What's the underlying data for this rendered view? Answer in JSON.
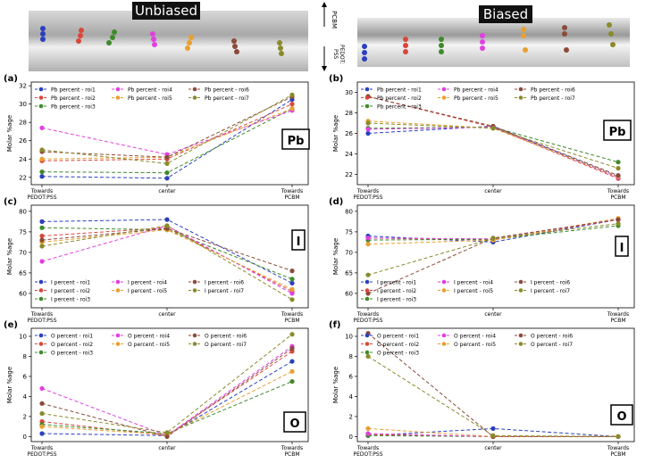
{
  "images": {
    "left_title": "Unbiased",
    "right_title": "Biased",
    "top_label": "PCBM",
    "bottom_label": "PEDOT:\nPSS"
  },
  "chart_data": [
    {
      "type": "line",
      "panel": "(a)",
      "element": "Pb",
      "ylabel": "Molar %age",
      "legend": "upper left",
      "categories": [
        "Towards\nPEDOT:PSS",
        "center",
        "Towards\nPCBM"
      ],
      "ylim": [
        21.2,
        32.4
      ],
      "yticks": [
        22,
        24,
        26,
        28,
        30,
        32
      ],
      "series": [
        {
          "name": "Pb percent - roi1",
          "color": "#2a3fbf",
          "values": [
            22.1,
            21.9,
            30.5
          ]
        },
        {
          "name": "Pb percent - roi2",
          "color": "#d9473a",
          "values": [
            23.8,
            24.0,
            30.0
          ]
        },
        {
          "name": "Pb percent - roi3",
          "color": "#3f8a2b",
          "values": [
            22.6,
            22.5,
            29.5
          ]
        },
        {
          "name": "Pb percent - roi4",
          "color": "#e040e0",
          "values": [
            27.4,
            24.5,
            29.3
          ]
        },
        {
          "name": "Pb percent - roi5",
          "color": "#e8a030",
          "values": [
            24.0,
            24.2,
            29.5
          ]
        },
        {
          "name": "Pb percent - roi6",
          "color": "#8b4a3a",
          "values": [
            24.8,
            24.2,
            30.8
          ]
        },
        {
          "name": "Pb percent - roi7",
          "color": "#8a8a2a",
          "values": [
            25.0,
            23.5,
            31.0
          ]
        }
      ]
    },
    {
      "type": "line",
      "panel": "(b)",
      "element": "Pb",
      "ylabel": "Molar %age",
      "legend": "upper left",
      "categories": [
        "Towards\nPEDOT:PSS",
        "center",
        "Towards\nPCBM"
      ],
      "ylim": [
        21,
        31
      ],
      "yticks": [
        22,
        24,
        26,
        28,
        30
      ],
      "series": [
        {
          "name": "Pb percent - roi1",
          "color": "#2a3fbf",
          "values": [
            26.0,
            26.7,
            21.8
          ]
        },
        {
          "name": "Pb percent - roi2",
          "color": "#d9473a",
          "values": [
            29.6,
            26.6,
            21.6
          ]
        },
        {
          "name": "Pb percent - roi3",
          "color": "#3f8a2b",
          "values": [
            26.5,
            26.6,
            23.2
          ]
        },
        {
          "name": "Pb percent - roi4",
          "color": "#e040e0",
          "values": [
            26.4,
            26.6,
            21.7
          ]
        },
        {
          "name": "Pb percent - roi5",
          "color": "#e8a030",
          "values": [
            27.2,
            26.5,
            21.8
          ]
        },
        {
          "name": "Pb percent - roi6",
          "color": "#8b4a3a",
          "values": [
            29.6,
            26.7,
            21.9
          ]
        },
        {
          "name": "Pb percent - roi7",
          "color": "#8a8a2a",
          "values": [
            27.0,
            26.5,
            22.6
          ]
        }
      ]
    },
    {
      "type": "line",
      "panel": "(c)",
      "element": "I",
      "ylabel": "Molar %age",
      "legend": "lower left",
      "categories": [
        "Towards\nPEDOT:PSS",
        "center",
        "Towards\nPCBM"
      ],
      "ylim": [
        56.5,
        81.5
      ],
      "yticks": [
        60,
        65,
        70,
        75,
        80
      ],
      "series": [
        {
          "name": "I percent - roi1",
          "color": "#2a3fbf",
          "values": [
            77.5,
            78.0,
            62.5
          ]
        },
        {
          "name": "I percent - roi2",
          "color": "#d9473a",
          "values": [
            74.0,
            76.0,
            60.5
          ]
        },
        {
          "name": "I percent - roi3",
          "color": "#3f8a2b",
          "values": [
            76.0,
            75.5,
            63.5
          ]
        },
        {
          "name": "I percent - roi4",
          "color": "#e040e0",
          "values": [
            67.8,
            76.5,
            60.0
          ]
        },
        {
          "name": "I percent - roi5",
          "color": "#e8a030",
          "values": [
            72.5,
            75.5,
            61.0
          ]
        },
        {
          "name": "I percent - roi6",
          "color": "#8b4a3a",
          "values": [
            73.0,
            75.8,
            65.5
          ]
        },
        {
          "name": "I percent - roi7",
          "color": "#8a8a2a",
          "values": [
            71.5,
            76.5,
            58.5
          ]
        }
      ]
    },
    {
      "type": "line",
      "panel": "(d)",
      "element": "I",
      "ylabel": "Molar %age",
      "legend": "lower left",
      "categories": [
        "Towards\nPEDOT:PSS",
        "center",
        "Towards\nPCBM"
      ],
      "ylim": [
        56.5,
        81.5
      ],
      "yticks": [
        60,
        65,
        70,
        75,
        80
      ],
      "series": [
        {
          "name": "I percent - roi1",
          "color": "#2a3fbf",
          "values": [
            74.0,
            72.5,
            78.0
          ]
        },
        {
          "name": "I percent - roi2",
          "color": "#d9473a",
          "values": [
            73.5,
            73.0,
            78.0
          ]
        },
        {
          "name": "I percent - roi3",
          "color": "#3f8a2b",
          "values": [
            73.0,
            73.2,
            76.5
          ]
        },
        {
          "name": "I percent - roi4",
          "color": "#e040e0",
          "values": [
            73.5,
            73.3,
            78.0
          ]
        },
        {
          "name": "I percent - roi5",
          "color": "#e8a030",
          "values": [
            72.0,
            73.0,
            78.3
          ]
        },
        {
          "name": "I percent - roi6",
          "color": "#8b4a3a",
          "values": [
            60.0,
            73.5,
            78.0
          ]
        },
        {
          "name": "I percent - roi7",
          "color": "#8a8a2a",
          "values": [
            64.5,
            73.4,
            77.0
          ]
        }
      ]
    },
    {
      "type": "line",
      "panel": "(e)",
      "element": "O",
      "ylabel": "Molar %age",
      "legend": "upper left",
      "categories": [
        "Towards\nPEDOT:PSS",
        "center",
        "Towards\nPCBM"
      ],
      "ylim": [
        -0.5,
        10.8
      ],
      "yticks": [
        0,
        2,
        4,
        6,
        8,
        10
      ],
      "series": [
        {
          "name": "O percent - roi1",
          "color": "#2a3fbf",
          "values": [
            0.3,
            0.1,
            7.5
          ]
        },
        {
          "name": "O percent - roi2",
          "color": "#d9473a",
          "values": [
            1.5,
            0.1,
            8.5
          ]
        },
        {
          "name": "O percent - roi3",
          "color": "#3f8a2b",
          "values": [
            1.2,
            0.3,
            5.5
          ]
        },
        {
          "name": "O percent - roi4",
          "color": "#e040e0",
          "values": [
            4.8,
            0.1,
            9.0
          ]
        },
        {
          "name": "O percent - roi5",
          "color": "#e8a030",
          "values": [
            1.0,
            0.2,
            6.5
          ]
        },
        {
          "name": "O percent - roi6",
          "color": "#8b4a3a",
          "values": [
            3.3,
            0.0,
            8.8
          ]
        },
        {
          "name": "O percent - roi7",
          "color": "#8a8a2a",
          "values": [
            2.3,
            0.4,
            10.2
          ]
        }
      ]
    },
    {
      "type": "line",
      "panel": "(f)",
      "element": "O",
      "ylabel": "Molar %age",
      "legend": "upper left",
      "categories": [
        "Towards\nPEDOT:PSS",
        "center",
        "Towards\nPCBM"
      ],
      "ylim": [
        -0.5,
        10.8
      ],
      "yticks": [
        0,
        2,
        4,
        6,
        8,
        10
      ],
      "series": [
        {
          "name": "O percent - roi1",
          "color": "#2a3fbf",
          "values": [
            0.1,
            0.8,
            0.0
          ]
        },
        {
          "name": "O percent - roi2",
          "color": "#d9473a",
          "values": [
            0.2,
            0.0,
            0.0
          ]
        },
        {
          "name": "O percent - roi3",
          "color": "#3f8a2b",
          "values": [
            0.1,
            0.0,
            0.0
          ]
        },
        {
          "name": "O percent - roi4",
          "color": "#e040e0",
          "values": [
            0.3,
            0.0,
            0.0
          ]
        },
        {
          "name": "O percent - roi5",
          "color": "#e8a030",
          "values": [
            0.8,
            0.0,
            0.0
          ]
        },
        {
          "name": "O percent - roi6",
          "color": "#8b4a3a",
          "values": [
            10.3,
            0.0,
            0.0
          ]
        },
        {
          "name": "O percent - roi7",
          "color": "#8a8a2a",
          "values": [
            8.0,
            0.1,
            0.0
          ]
        }
      ]
    }
  ]
}
